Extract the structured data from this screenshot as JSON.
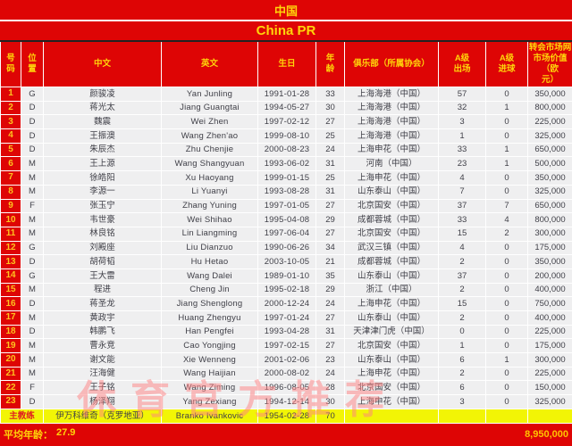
{
  "title": {
    "cn": "中国",
    "en": "China PR"
  },
  "table": {
    "headers": {
      "num": "号\n码",
      "pos": "位\n置",
      "cn_name": "中文",
      "en_name": "英文",
      "birthday": "生日",
      "age": "年\n龄",
      "club": "俱乐部（所属协会）",
      "caps": "A级\n出场",
      "goals": "A级\n进球",
      "value": "转会市场网\n市场价值（欧\n元）"
    },
    "field_order": [
      "num",
      "pos",
      "cn_name",
      "en_name",
      "birthday",
      "age",
      "club",
      "caps",
      "goals",
      "value"
    ]
  },
  "players": [
    {
      "num": "1",
      "pos": "G",
      "cn_name": "颜骏凌",
      "en_name": "Yan Junling",
      "birthday": "1991-01-28",
      "age": "33",
      "club": "上海海港（中国）",
      "caps": "57",
      "goals": "0",
      "value": "350,000"
    },
    {
      "num": "2",
      "pos": "D",
      "cn_name": "蒋光太",
      "en_name": "Jiang Guangtai",
      "birthday": "1994-05-27",
      "age": "30",
      "club": "上海海港（中国）",
      "caps": "32",
      "goals": "1",
      "value": "800,000"
    },
    {
      "num": "3",
      "pos": "D",
      "cn_name": "魏震",
      "en_name": "Wei Zhen",
      "birthday": "1997-02-12",
      "age": "27",
      "club": "上海海港（中国）",
      "caps": "3",
      "goals": "0",
      "value": "225,000"
    },
    {
      "num": "4",
      "pos": "D",
      "cn_name": "王振澳",
      "en_name": "Wang Zhen'ao",
      "birthday": "1999-08-10",
      "age": "25",
      "club": "上海海港（中国）",
      "caps": "1",
      "goals": "0",
      "value": "325,000"
    },
    {
      "num": "5",
      "pos": "D",
      "cn_name": "朱辰杰",
      "en_name": "Zhu Chenjie",
      "birthday": "2000-08-23",
      "age": "24",
      "club": "上海申花（中国）",
      "caps": "33",
      "goals": "1",
      "value": "650,000"
    },
    {
      "num": "6",
      "pos": "M",
      "cn_name": "王上源",
      "en_name": "Wang Shangyuan",
      "birthday": "1993-06-02",
      "age": "31",
      "club": "河南（中国）",
      "caps": "23",
      "goals": "1",
      "value": "500,000"
    },
    {
      "num": "7",
      "pos": "M",
      "cn_name": "徐皓阳",
      "en_name": "Xu Haoyang",
      "birthday": "1999-01-15",
      "age": "25",
      "club": "上海申花（中国）",
      "caps": "4",
      "goals": "0",
      "value": "350,000"
    },
    {
      "num": "8",
      "pos": "M",
      "cn_name": "李源一",
      "en_name": "Li Yuanyi",
      "birthday": "1993-08-28",
      "age": "31",
      "club": "山东泰山（中国）",
      "caps": "7",
      "goals": "0",
      "value": "325,000"
    },
    {
      "num": "9",
      "pos": "F",
      "cn_name": "张玉宁",
      "en_name": "Zhang Yuning",
      "birthday": "1997-01-05",
      "age": "27",
      "club": "北京国安（中国）",
      "caps": "37",
      "goals": "7",
      "value": "650,000"
    },
    {
      "num": "10",
      "pos": "M",
      "cn_name": "韦世豪",
      "en_name": "Wei Shihao",
      "birthday": "1995-04-08",
      "age": "29",
      "club": "成都蓉城（中国）",
      "caps": "33",
      "goals": "4",
      "value": "800,000"
    },
    {
      "num": "11",
      "pos": "M",
      "cn_name": "林良铭",
      "en_name": "Lin Liangming",
      "birthday": "1997-06-04",
      "age": "27",
      "club": "北京国安（中国）",
      "caps": "15",
      "goals": "2",
      "value": "300,000"
    },
    {
      "num": "12",
      "pos": "G",
      "cn_name": "刘殿座",
      "en_name": "Liu Dianzuo",
      "birthday": "1990-06-26",
      "age": "34",
      "club": "武汉三镇（中国）",
      "caps": "4",
      "goals": "0",
      "value": "175,000"
    },
    {
      "num": "13",
      "pos": "D",
      "cn_name": "胡荷韬",
      "en_name": "Hu Hetao",
      "birthday": "2003-10-05",
      "age": "21",
      "club": "成都蓉城（中国）",
      "caps": "2",
      "goals": "0",
      "value": "350,000"
    },
    {
      "num": "14",
      "pos": "G",
      "cn_name": "王大雷",
      "en_name": "Wang Dalei",
      "birthday": "1989-01-10",
      "age": "35",
      "club": "山东泰山（中国）",
      "caps": "37",
      "goals": "0",
      "value": "200,000"
    },
    {
      "num": "15",
      "pos": "M",
      "cn_name": "程进",
      "en_name": "Cheng Jin",
      "birthday": "1995-02-18",
      "age": "29",
      "club": "浙江（中国）",
      "caps": "2",
      "goals": "0",
      "value": "400,000"
    },
    {
      "num": "16",
      "pos": "D",
      "cn_name": "蒋圣龙",
      "en_name": "Jiang Shenglong",
      "birthday": "2000-12-24",
      "age": "24",
      "club": "上海申花（中国）",
      "caps": "15",
      "goals": "0",
      "value": "750,000"
    },
    {
      "num": "17",
      "pos": "M",
      "cn_name": "黄政宇",
      "en_name": "Huang Zhengyu",
      "birthday": "1997-01-24",
      "age": "27",
      "club": "山东泰山（中国）",
      "caps": "2",
      "goals": "0",
      "value": "400,000"
    },
    {
      "num": "18",
      "pos": "D",
      "cn_name": "韩鹏飞",
      "en_name": "Han Pengfei",
      "birthday": "1993-04-28",
      "age": "31",
      "club": "天津津门虎（中国）",
      "caps": "0",
      "goals": "0",
      "value": "225,000"
    },
    {
      "num": "19",
      "pos": "M",
      "cn_name": "曹永竞",
      "en_name": "Cao Yongjing",
      "birthday": "1997-02-15",
      "age": "27",
      "club": "北京国安（中国）",
      "caps": "1",
      "goals": "0",
      "value": "175,000"
    },
    {
      "num": "20",
      "pos": "M",
      "cn_name": "谢文能",
      "en_name": "Xie Wenneng",
      "birthday": "2001-02-06",
      "age": "23",
      "club": "山东泰山（中国）",
      "caps": "6",
      "goals": "1",
      "value": "300,000"
    },
    {
      "num": "21",
      "pos": "M",
      "cn_name": "汪海健",
      "en_name": "Wang Haijian",
      "birthday": "2000-08-02",
      "age": "24",
      "club": "上海申花（中国）",
      "caps": "2",
      "goals": "0",
      "value": "225,000"
    },
    {
      "num": "22",
      "pos": "F",
      "cn_name": "王子铭",
      "en_name": "Wang Ziming",
      "birthday": "1996-08-05",
      "age": "28",
      "club": "北京国安（中国）",
      "caps": "6",
      "goals": "0",
      "value": "150,000"
    },
    {
      "num": "23",
      "pos": "D",
      "cn_name": "杨泽翔",
      "en_name": "Yang Zexiang",
      "birthday": "1994-12-14",
      "age": "30",
      "club": "上海申花（中国）",
      "caps": "3",
      "goals": "0",
      "value": "325,000"
    }
  ],
  "coach": {
    "label": "主教练",
    "cn_name": "伊万科维奇（克罗地亚）",
    "en_name": "Branko Ivankovic",
    "birthday": "1954-02-28",
    "age": "70",
    "club": "",
    "caps": "",
    "goals": "",
    "value": ""
  },
  "footer": {
    "avg_age_label": "平均年龄：",
    "avg_age": "27.9",
    "total_value": "8,950,000"
  },
  "watermark": "休育官方推荐",
  "colors": {
    "red": "#de0505",
    "header_text": "#ffd50a",
    "row_bg": "#efeff0",
    "row_text": "#3f3f47",
    "num_text": "#ffc31f",
    "coach_bg": "#f2f505",
    "coach_label_text": "#e01f1f",
    "total_text": "#ffc400",
    "watermark_pink": "#ff8282"
  }
}
